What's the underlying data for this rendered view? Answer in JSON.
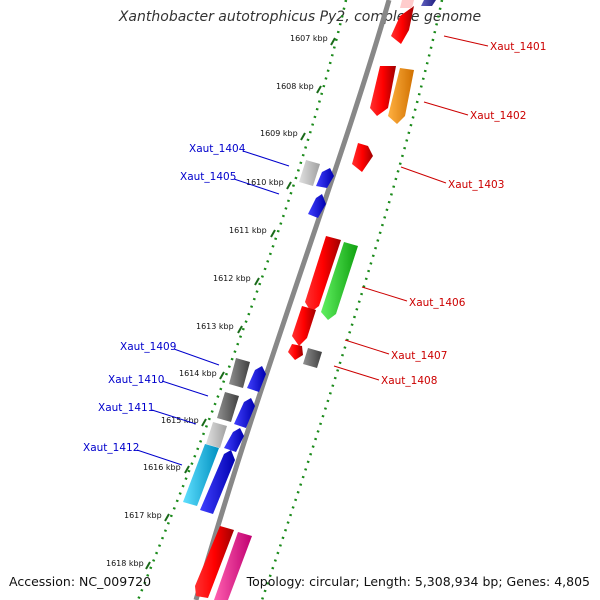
{
  "title": "Xanthobacter autotrophicus Py2, complete genome",
  "footer": {
    "accession": "Accession: NC_009720",
    "summary": "Topology: circular; Length: 5,308,934 bp; Genes: 4,805"
  },
  "colors": {
    "forward_label": "#cc0000",
    "reverse_label": "#0000cc",
    "dotted_track": "#1a8a1a",
    "backbone": "#888888"
  },
  "ticks": [
    "1607 kbp",
    "1608 kbp",
    "1609 kbp",
    "1610 kbp",
    "1611 kbp",
    "1612 kbp",
    "1613 kbp",
    "1614 kbp",
    "1615 kbp",
    "1616 kbp",
    "1617 kbp",
    "1618 kbp"
  ],
  "forward_labels": [
    "Xaut_1401",
    "Xaut_1402",
    "Xaut_1403",
    "Xaut_1406",
    "Xaut_1407",
    "Xaut_1408"
  ],
  "reverse_labels": [
    "Xaut_1404",
    "Xaut_1405",
    "Xaut_1409",
    "Xaut_1410",
    "Xaut_1411",
    "Xaut_1412"
  ]
}
